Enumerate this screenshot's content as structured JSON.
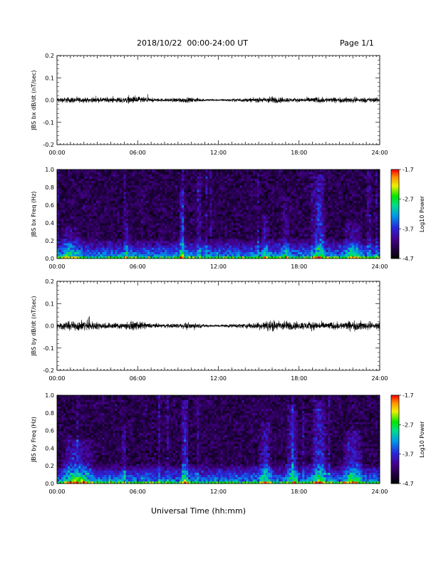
{
  "header": {
    "title": "2018/10/22  00:00-24:00 UT",
    "page": "Page 1/1"
  },
  "x_axis": {
    "label": "Universal Time (hh:mm)",
    "range_hours": [
      0,
      24
    ],
    "tick_labels": [
      "00:00",
      "06:00",
      "12:00",
      "18:00",
      "24:00"
    ]
  },
  "chart_data": [
    {
      "type": "line",
      "ylabel": "JBS bx dB/dt (nT/sec)",
      "ylim": [
        -0.2,
        0.2
      ],
      "yticks": [
        -0.2,
        -0.1,
        0.0,
        0.1,
        0.2
      ],
      "ytick_labels": [
        "-0.2",
        "-0.1",
        "0.0",
        "0.1",
        "0.2"
      ],
      "x_hours": [
        0,
        1,
        2,
        3,
        4,
        5,
        6,
        7,
        8,
        9,
        10,
        11,
        12,
        13,
        14,
        15,
        16,
        17,
        18,
        19,
        20,
        21,
        22,
        23,
        24
      ],
      "amplitude": [
        0.02,
        0.025,
        0.02,
        0.02,
        0.02,
        0.025,
        0.03,
        0.015,
        0.012,
        0.02,
        0.02,
        0.01,
        0.008,
        0.012,
        0.015,
        0.02,
        0.03,
        0.02,
        0.015,
        0.025,
        0.022,
        0.02,
        0.025,
        0.02,
        0.02
      ],
      "color": "#000000"
    },
    {
      "type": "heatmap",
      "ylabel": "JBS bx Freq (Hz)",
      "ylim": [
        0.0,
        1.0
      ],
      "yticks": [
        0.0,
        0.2,
        0.4,
        0.6,
        0.8,
        1.0
      ],
      "ytick_labels": [
        "0.0",
        "0.2",
        "0.4",
        "0.6",
        "0.8",
        "1.0"
      ],
      "colorbar": {
        "label": "Log10 Power",
        "range": [
          -4.7,
          -1.7
        ],
        "ticks": [
          -4.7,
          -3.7,
          -2.7,
          -1.7
        ],
        "tick_labels": [
          "-4.7",
          "-3.7",
          "-2.7",
          "-1.7"
        ]
      },
      "bursts": [
        {
          "hour": 1.0,
          "width": 1.6,
          "strength": 0.6,
          "top": 0.35
        },
        {
          "hour": 5.2,
          "width": 0.3,
          "strength": 0.6,
          "top": 0.6
        },
        {
          "hour": 9.3,
          "width": 0.5,
          "strength": 0.8,
          "top": 0.8
        },
        {
          "hour": 15.5,
          "width": 0.6,
          "strength": 0.6,
          "top": 0.5
        },
        {
          "hour": 17.0,
          "width": 0.8,
          "strength": 0.4,
          "top": 0.7
        },
        {
          "hour": 19.5,
          "width": 1.0,
          "strength": 0.9,
          "top": 0.95
        },
        {
          "hour": 22.0,
          "width": 1.4,
          "strength": 0.6,
          "top": 0.4
        }
      ]
    },
    {
      "type": "line",
      "ylabel": "JBS by dB/dt (nT/sec)",
      "ylim": [
        -0.2,
        0.2
      ],
      "yticks": [
        -0.2,
        -0.1,
        0.0,
        0.1,
        0.2
      ],
      "ytick_labels": [
        "-0.2",
        "-0.1",
        "0.0",
        "0.1",
        "0.2"
      ],
      "x_hours": [
        0,
        1,
        2,
        3,
        4,
        5,
        6,
        7,
        8,
        9,
        10,
        11,
        12,
        13,
        14,
        15,
        16,
        17,
        18,
        19,
        20,
        21,
        22,
        23,
        24
      ],
      "amplitude": [
        0.03,
        0.035,
        0.045,
        0.03,
        0.025,
        0.03,
        0.035,
        0.02,
        0.015,
        0.02,
        0.025,
        0.012,
        0.01,
        0.015,
        0.02,
        0.03,
        0.045,
        0.04,
        0.03,
        0.035,
        0.03,
        0.03,
        0.04,
        0.035,
        0.03
      ],
      "color": "#000000"
    },
    {
      "type": "heatmap",
      "ylabel": "JBS by Freq (Hz)",
      "ylim": [
        0.0,
        1.0
      ],
      "yticks": [
        0.0,
        0.2,
        0.4,
        0.6,
        0.8,
        1.0
      ],
      "ytick_labels": [
        "0.0",
        "0.2",
        "0.4",
        "0.6",
        "0.8",
        "1.0"
      ],
      "colorbar": {
        "label": "Log10 Power",
        "range": [
          -4.7,
          -1.7
        ],
        "ticks": [
          -4.7,
          -3.7,
          -2.7,
          -1.7
        ],
        "tick_labels": [
          "-4.7",
          "-3.7",
          "-2.7",
          "-1.7"
        ]
      },
      "bursts": [
        {
          "hour": 1.5,
          "width": 2.5,
          "strength": 0.8,
          "top": 0.5
        },
        {
          "hour": 5.0,
          "width": 0.4,
          "strength": 0.6,
          "top": 0.65
        },
        {
          "hour": 9.5,
          "width": 0.6,
          "strength": 0.9,
          "top": 0.95
        },
        {
          "hour": 15.5,
          "width": 1.0,
          "strength": 0.8,
          "top": 0.7
        },
        {
          "hour": 17.5,
          "width": 1.0,
          "strength": 0.7,
          "top": 0.9
        },
        {
          "hour": 19.5,
          "width": 1.2,
          "strength": 0.9,
          "top": 0.95
        },
        {
          "hour": 22.0,
          "width": 1.6,
          "strength": 0.8,
          "top": 0.6
        }
      ]
    }
  ]
}
